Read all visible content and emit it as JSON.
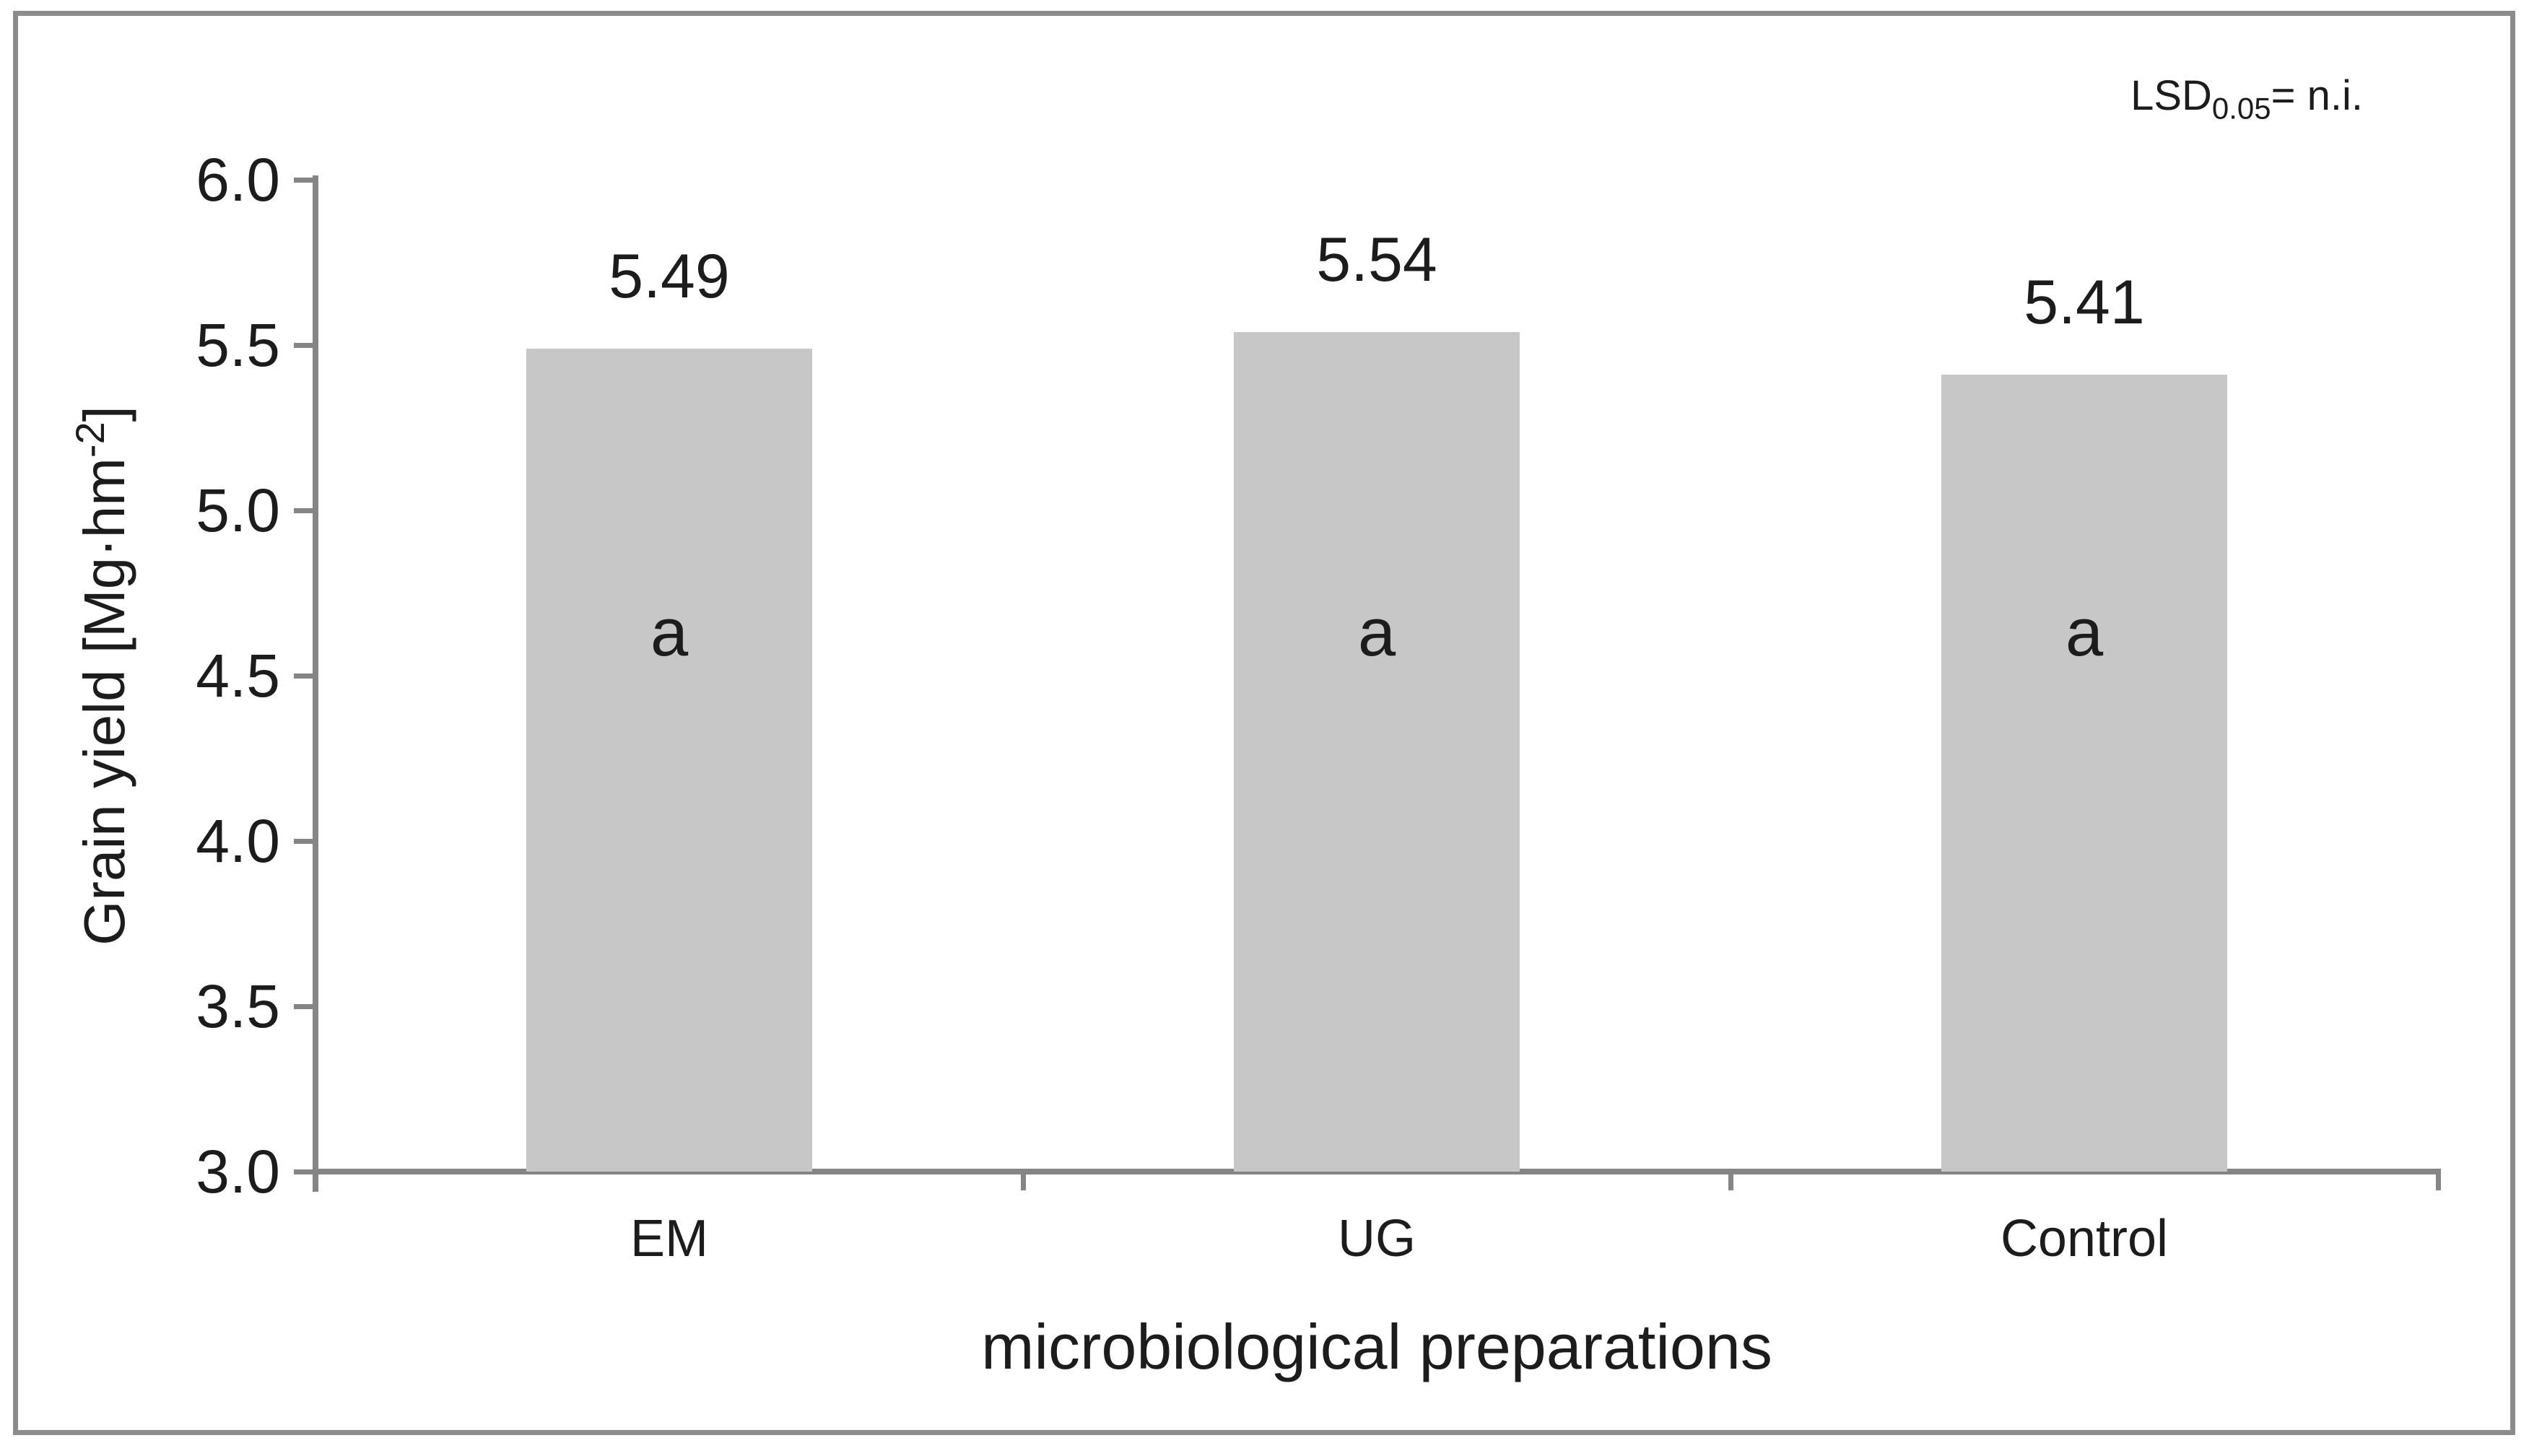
{
  "chart_data": {
    "type": "bar",
    "title": "",
    "categories": [
      "EM",
      "UG",
      "Control"
    ],
    "values": [
      5.49,
      5.54,
      5.41
    ],
    "value_labels": [
      "5.49",
      "5.54",
      "5.41"
    ],
    "letter_labels": [
      "a",
      "a",
      "a"
    ],
    "xlabel": "microbiological preparations",
    "ylabel": "Grain yield [Mg·hm⁻²]",
    "ylabel_parts": {
      "pre": "Grain yield [Mg·hm",
      "sup": "-2",
      "post": "]"
    },
    "ylim": [
      3.0,
      6.0
    ],
    "ytick_step": 0.5,
    "ytick_labels": [
      "6.0",
      "5.5",
      "5.0",
      "4.5",
      "4.0",
      "3.5",
      "3.0"
    ],
    "annotation": {
      "pre": "LSD",
      "sub": "0.05",
      "post": "= n.i."
    },
    "grid": false,
    "legend": false,
    "bar_color": "#c7c7c7",
    "axis_color": "#858585",
    "text_color": "#1c1c1c",
    "border_color": "#8c8c8c"
  }
}
